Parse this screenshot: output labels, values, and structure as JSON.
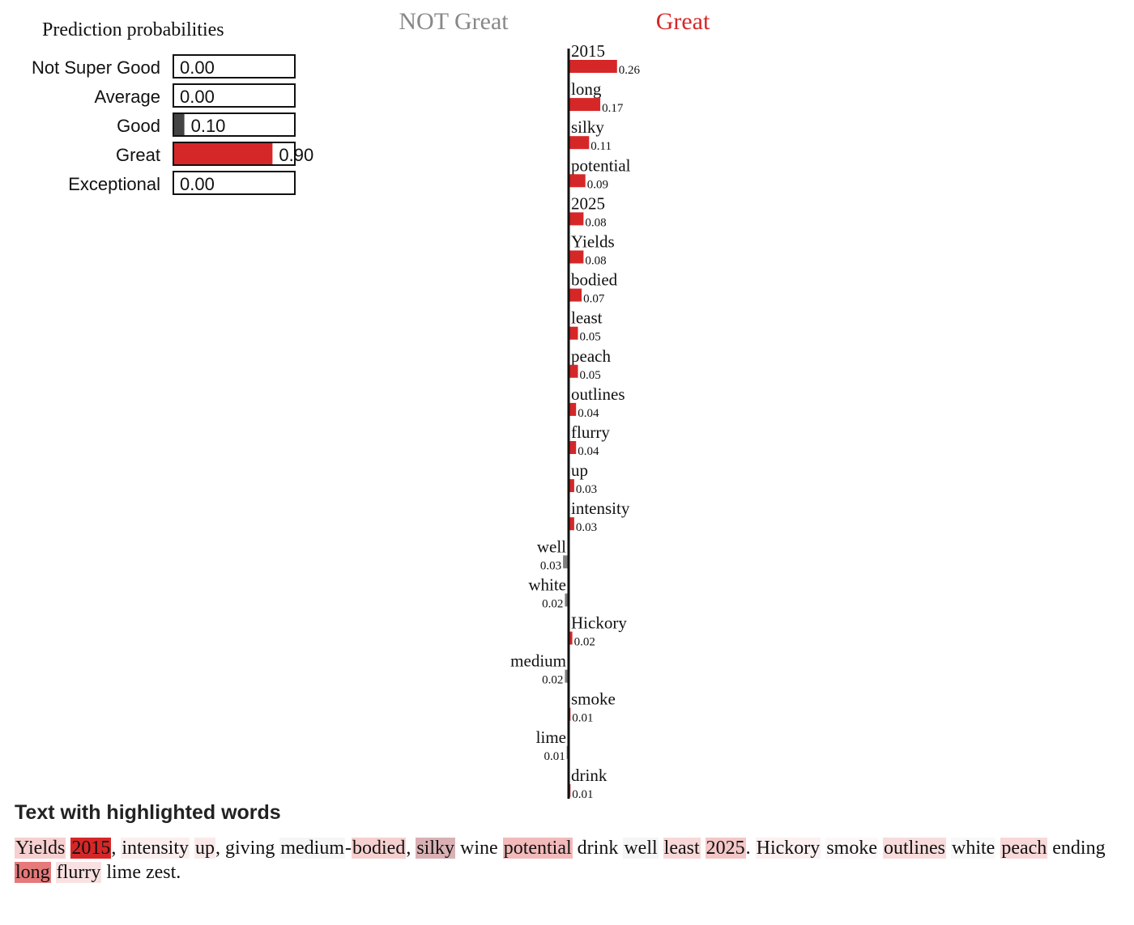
{
  "prediction": {
    "title": "Prediction probabilities",
    "bar_color": "#d62728",
    "classes": [
      {
        "label": "Not Super Good",
        "value": 0.0,
        "value_label": "0.00",
        "color": "#7f7f7f"
      },
      {
        "label": "Average",
        "value": 0.0,
        "value_label": "0.00",
        "color": "#7f7f7f"
      },
      {
        "label": "Good",
        "value": 0.1,
        "value_label": "0.10",
        "color": "#444444"
      },
      {
        "label": "Great",
        "value": 0.9,
        "value_label": "0.90",
        "color": "#d62728"
      },
      {
        "label": "Exceptional",
        "value": 0.0,
        "value_label": "0.00",
        "color": "#7f7f7f"
      }
    ]
  },
  "chart_data": {
    "type": "bar",
    "orientation": "horizontal-diverging",
    "negative_label": "NOT Great",
    "positive_label": "Great",
    "negative_color": "#808080",
    "positive_color": "#d62728",
    "features": [
      {
        "word": "2015",
        "weight": 0.26,
        "label": "0.26",
        "side": "positive"
      },
      {
        "word": "long",
        "weight": 0.17,
        "label": "0.17",
        "side": "positive"
      },
      {
        "word": "silky",
        "weight": 0.11,
        "label": "0.11",
        "side": "positive"
      },
      {
        "word": "potential",
        "weight": 0.09,
        "label": "0.09",
        "side": "positive"
      },
      {
        "word": "2025",
        "weight": 0.08,
        "label": "0.08",
        "side": "positive"
      },
      {
        "word": "Yields",
        "weight": 0.08,
        "label": "0.08",
        "side": "positive"
      },
      {
        "word": "bodied",
        "weight": 0.07,
        "label": "0.07",
        "side": "positive"
      },
      {
        "word": "least",
        "weight": 0.05,
        "label": "0.05",
        "side": "positive"
      },
      {
        "word": "peach",
        "weight": 0.05,
        "label": "0.05",
        "side": "positive"
      },
      {
        "word": "outlines",
        "weight": 0.04,
        "label": "0.04",
        "side": "positive"
      },
      {
        "word": "flurry",
        "weight": 0.04,
        "label": "0.04",
        "side": "positive"
      },
      {
        "word": "up",
        "weight": 0.03,
        "label": "0.03",
        "side": "positive"
      },
      {
        "word": "intensity",
        "weight": 0.03,
        "label": "0.03",
        "side": "positive"
      },
      {
        "word": "well",
        "weight": 0.03,
        "label": "0.03",
        "side": "negative"
      },
      {
        "word": "white",
        "weight": 0.02,
        "label": "0.02",
        "side": "negative"
      },
      {
        "word": "Hickory",
        "weight": 0.02,
        "label": "0.02",
        "side": "positive"
      },
      {
        "word": "medium",
        "weight": 0.02,
        "label": "0.02",
        "side": "negative"
      },
      {
        "word": "smoke",
        "weight": 0.01,
        "label": "0.01",
        "side": "positive"
      },
      {
        "word": "lime",
        "weight": 0.01,
        "label": "0.01",
        "side": "negative"
      },
      {
        "word": "drink",
        "weight": 0.01,
        "label": "0.01",
        "side": "positive"
      }
    ]
  },
  "highlighted_text": {
    "title": "Text with highlighted words",
    "tokens": [
      {
        "text": "Yields",
        "bg": "rgba(214,39,40,0.22)"
      },
      {
        "text": " "
      },
      {
        "text": "2015",
        "bg": "rgba(214,39,40,1.0)"
      },
      {
        "text": ", "
      },
      {
        "text": "intensity",
        "bg": "rgba(214,39,40,0.08)"
      },
      {
        "text": " "
      },
      {
        "text": "up",
        "bg": "rgba(214,39,40,0.10)"
      },
      {
        "text": ", giving "
      },
      {
        "text": "medium",
        "bg": "rgba(128,128,128,0.07)"
      },
      {
        "text": "-"
      },
      {
        "text": "bodied",
        "bg": "rgba(214,39,40,0.22)"
      },
      {
        "text": ", "
      },
      {
        "text": "silky",
        "bg": "rgba(160,60,70,0.40)"
      },
      {
        "text": " wine "
      },
      {
        "text": "potential",
        "bg": "rgba(214,39,40,0.32)"
      },
      {
        "text": " drink "
      },
      {
        "text": "well",
        "bg": "rgba(128,128,128,0.08)"
      },
      {
        "text": " "
      },
      {
        "text": "least",
        "bg": "rgba(214,39,40,0.18)"
      },
      {
        "text": " "
      },
      {
        "text": "2025",
        "bg": "rgba(214,39,40,0.26)"
      },
      {
        "text": ". "
      },
      {
        "text": "Hickory",
        "bg": "rgba(214,39,40,0.07)"
      },
      {
        "text": " "
      },
      {
        "text": "smoke",
        "bg": "rgba(214,39,40,0.04)"
      },
      {
        "text": " "
      },
      {
        "text": "outlines",
        "bg": "rgba(214,39,40,0.16)"
      },
      {
        "text": " "
      },
      {
        "text": "white",
        "bg": "rgba(128,128,128,0.06)"
      },
      {
        "text": " "
      },
      {
        "text": "peach",
        "bg": "rgba(214,39,40,0.18)"
      },
      {
        "text": " ending "
      },
      {
        "text": "long",
        "bg": "rgba(214,39,40,0.62)"
      },
      {
        "text": " "
      },
      {
        "text": "flurry",
        "bg": "rgba(214,39,40,0.14)"
      },
      {
        "text": " lime zest."
      }
    ]
  }
}
